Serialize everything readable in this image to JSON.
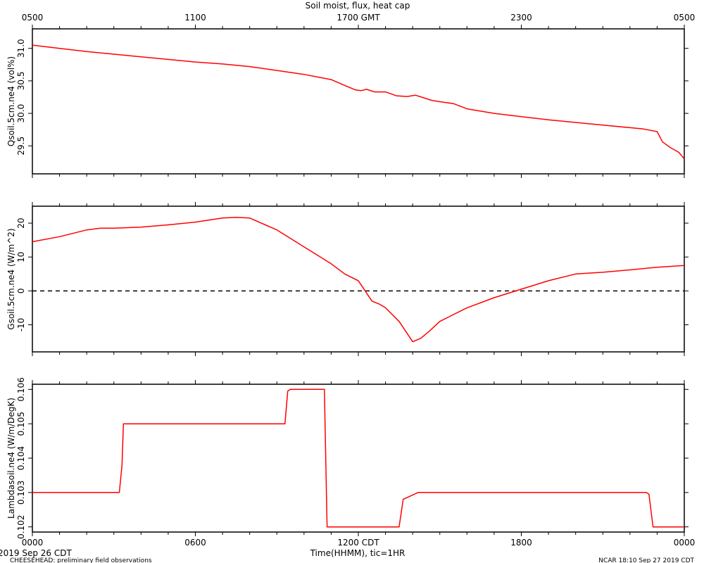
{
  "chart_data": {
    "type": "line",
    "title": "Soil moist, flux, heat cap",
    "top_axis_ticks": [
      "0500",
      "1100",
      "1700 GMT",
      "2300",
      "0500"
    ],
    "bottom_axis_ticks": [
      "0000",
      "0600",
      "1200 CDT",
      "1800",
      "0000"
    ],
    "xlabel": "Time(HHMM), tic=1HR",
    "x_hours_range": [
      0,
      24
    ],
    "line_color": "#ff0000",
    "panels": [
      {
        "ylabel": "Qsoil.5cm.ne4 (vol%)",
        "ylim": [
          29.07,
          31.3
        ],
        "yticks": [
          29.5,
          30.0,
          30.5,
          31.0
        ],
        "ytick_labels": [
          "29.5",
          "30.0",
          "30.5",
          "31.0"
        ],
        "series": [
          {
            "x": [
              0,
              1,
              2,
              3,
              4,
              5,
              6,
              7,
              8,
              9,
              10,
              10.5,
              11,
              11.5,
              11.9,
              12.1,
              12.3,
              12.6,
              13.0,
              13.4,
              13.8,
              14.1,
              14.4,
              14.7,
              15,
              15.5,
              16,
              17,
              18,
              19,
              20,
              21,
              22,
              22.5,
              23.0,
              23.2,
              23.5,
              23.8,
              24
            ],
            "y": [
              31.05,
              31.0,
              30.95,
              30.91,
              30.87,
              30.83,
              30.79,
              30.76,
              30.72,
              30.66,
              30.6,
              30.56,
              30.52,
              30.43,
              30.36,
              30.35,
              30.37,
              30.33,
              30.33,
              30.27,
              30.26,
              30.28,
              30.24,
              30.2,
              30.18,
              30.15,
              30.07,
              30.0,
              29.95,
              29.9,
              29.86,
              29.82,
              29.78,
              29.76,
              29.72,
              29.56,
              29.47,
              29.4,
              29.3
            ]
          }
        ]
      },
      {
        "ylabel": "Gsoil.5cm.ne4 (W/m^2)",
        "ylim": [
          -18,
          25
        ],
        "yticks": [
          -10,
          0,
          10,
          20
        ],
        "ytick_labels": [
          "-10",
          "0",
          "10",
          "20"
        ],
        "zero_line": true,
        "series": [
          {
            "x": [
              0,
              1,
              2,
              2.5,
              3,
              4,
              5,
              6,
              7,
              7.5,
              8,
              9,
              10,
              11,
              11.5,
              12,
              12.5,
              12.8,
              13,
              13.5,
              14,
              14.3,
              14.6,
              15,
              15.5,
              16,
              17,
              18,
              19,
              20,
              21,
              22,
              23,
              24
            ],
            "y": [
              14.5,
              16,
              18,
              18.5,
              18.5,
              18.8,
              19.5,
              20.3,
              21.5,
              21.7,
              21.5,
              18,
              13,
              8,
              5,
              3,
              -3,
              -4,
              -5,
              -9,
              -15,
              -14,
              -12,
              -9,
              -7,
              -5,
              -2,
              0.5,
              3,
              5,
              5.5,
              6.2,
              7,
              7.5
            ]
          }
        ]
      },
      {
        "ylabel": "Lambdasoil.ne4 (W/m/DegK)",
        "ylim": [
          0.10185,
          0.10615
        ],
        "yticks": [
          0.102,
          0.103,
          0.104,
          0.105,
          0.106
        ],
        "ytick_labels": [
          "0.102",
          "0.103",
          "0.104",
          "0.105",
          "0.106"
        ],
        "series": [
          {
            "x": [
              0,
              3.2,
              3.3,
              3.35,
              9.3,
              9.4,
              9.5,
              10.75,
              10.85,
              13.5,
              13.65,
              14.2,
              22.6,
              22.7,
              22.85,
              24
            ],
            "y": [
              0.103,
              0.103,
              0.1038,
              0.105,
              0.105,
              0.10595,
              0.106,
              0.106,
              0.102,
              0.102,
              0.1028,
              0.103,
              0.103,
              0.10295,
              0.102,
              0.102
            ]
          }
        ]
      }
    ],
    "footer_left_top": "2019 Sep 26 CDT",
    "footer_left_bottom": "CHEESEHEAD: preliminary field observations",
    "footer_right": "NCAR 18:10 Sep 27 2019 CDT"
  }
}
